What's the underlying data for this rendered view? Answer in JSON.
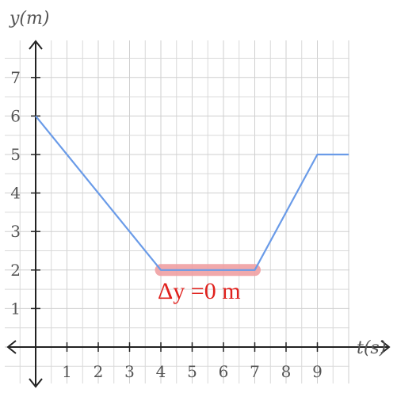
{
  "chart_data": {
    "type": "line",
    "xlabel": "t(s)",
    "ylabel": "y(m)",
    "xlim": [
      -0.05,
      10
    ],
    "ylim": [
      -0.45,
      8
    ],
    "x_ticks": [
      1,
      2,
      3,
      4,
      5,
      6,
      7,
      8,
      9
    ],
    "y_ticks": [
      1,
      2,
      3,
      4,
      5,
      6,
      7
    ],
    "grid": true,
    "grid_minor_step": 0.5,
    "colors": {
      "line": "#6a9be8",
      "highlight": "#f0a0a3",
      "annotation": "#e0211d",
      "grid": "#d9d9d9",
      "axis": "#222222"
    },
    "series": [
      {
        "points": [
          [
            0,
            6
          ],
          [
            4,
            2
          ],
          [
            7,
            2
          ],
          [
            9,
            5
          ],
          [
            10,
            5
          ]
        ]
      }
    ],
    "highlight": {
      "x": [
        4,
        7
      ],
      "y": 2
    },
    "annotation": {
      "text": "Δy =0 m",
      "x": 4,
      "y": 1.5
    }
  }
}
